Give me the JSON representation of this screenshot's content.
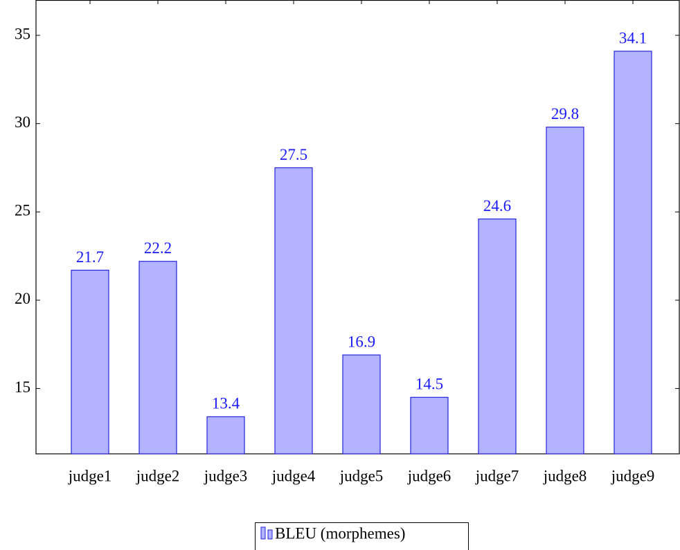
{
  "chart_data": {
    "type": "bar",
    "categories": [
      "judge1",
      "judge2",
      "judge3",
      "judge4",
      "judge5",
      "judge6",
      "judge7",
      "judge8",
      "judge9"
    ],
    "series": [
      {
        "name": "BLEU (morphemes)",
        "color": "#b3b3ff",
        "values": [
          21.7,
          22.2,
          13.4,
          27.5,
          16.9,
          14.5,
          24.6,
          29.8,
          34.1
        ]
      }
    ],
    "ylim": [
      11.3,
      37
    ],
    "yticks": [
      15,
      20,
      25,
      30,
      35
    ],
    "grid": false,
    "legend": "bottom"
  }
}
